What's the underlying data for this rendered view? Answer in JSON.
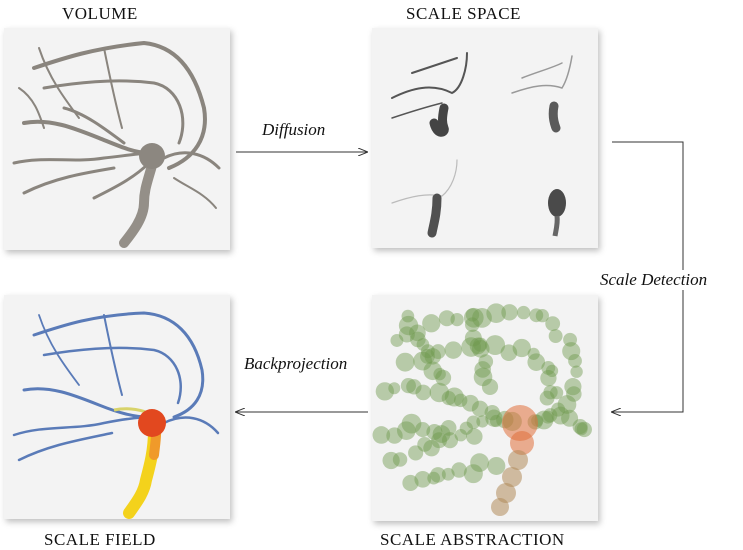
{
  "captions": {
    "volume": "VOLUME",
    "scale_space": "SCALE  SPACE",
    "scale_field": "SCALE  FIELD",
    "scale_abstraction": "SCALE  ABSTRACTION"
  },
  "edges": {
    "diffusion": "Diffusion",
    "scale_detection": "Scale Detection",
    "backprojection": "Backprojection"
  },
  "colors": {
    "vessel_gray": "#7f7b75",
    "abstraction_green": "#6f9a4e",
    "abstraction_core": "#e0703a",
    "field_blue": "#5a7bb8",
    "field_yellow": "#f3d21c",
    "field_red": "#e2481f"
  }
}
